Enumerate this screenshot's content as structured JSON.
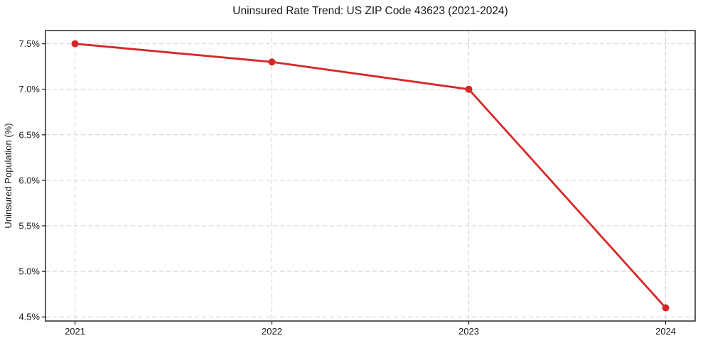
{
  "chart_data": {
    "type": "line",
    "title": "Uninsured Rate Trend: US ZIP Code 43623 (2021-2024)",
    "ylabel": "Uninsured Population (%)",
    "xlabel": "",
    "x": [
      2021,
      2022,
      2023,
      2024
    ],
    "xticklabels": [
      "2021",
      "2022",
      "2023",
      "2024"
    ],
    "series": [
      {
        "name": "Uninsured rate",
        "values": [
          7.5,
          7.3,
          7.0,
          4.6
        ]
      }
    ],
    "yticks": [
      4.5,
      5.0,
      5.5,
      6.0,
      6.5,
      7.0,
      7.5
    ],
    "ytick_decimals": 1,
    "ytick_suffix": "%",
    "xlim": [
      2020.85,
      2024.15
    ],
    "ylim": [
      4.455,
      7.645
    ],
    "grid": "both",
    "grid_style": "dashed",
    "legend": "none",
    "marker": "circle",
    "colors": {
      "line": "#d62728",
      "marker": "#d62728",
      "grid": "#cfcfcf",
      "axis": "#1a1a1a",
      "text": "#1a1a1a",
      "background": "#ffffff"
    }
  }
}
